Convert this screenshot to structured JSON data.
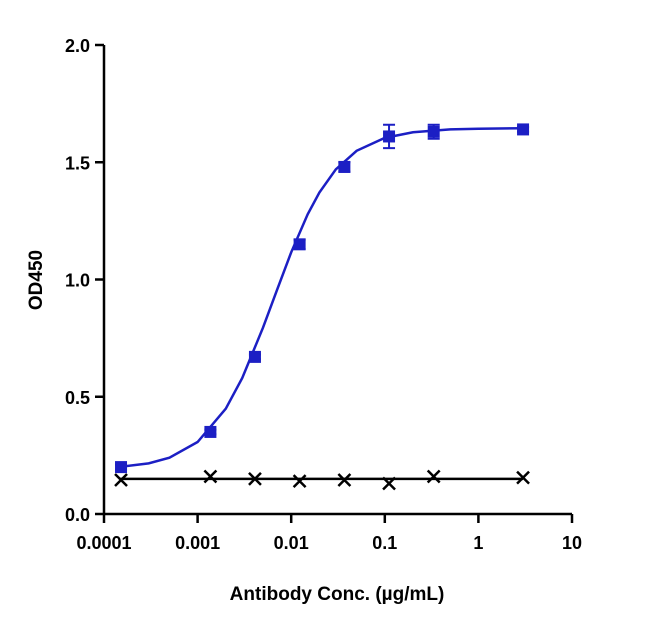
{
  "chart_data": {
    "type": "scatter",
    "x_label": "Antibody Conc. (µg/mL)",
    "y_label": "OD450",
    "xscale": "log",
    "xlim": [
      0.0001,
      10
    ],
    "xticks": [
      0.0001,
      0.001,
      0.01,
      0.1,
      1,
      10
    ],
    "ylim": [
      0,
      2
    ],
    "yticks": [
      {
        "value": 0,
        "label": "0.0"
      },
      0.5,
      {
        "value": 1,
        "label": "1.0"
      },
      1.5,
      {
        "value": 2,
        "label": "2.0"
      }
    ],
    "series": [
      {
        "color": "#1c1fc4",
        "marker": "square",
        "x": [
          0.000152,
          0.00137,
          0.0041,
          0.0123,
          0.037,
          0.111,
          0.333,
          3
        ],
        "values": [
          0.2,
          0.35,
          0.67,
          1.15,
          1.48,
          1.61,
          1.63,
          1.64
        ],
        "errors": [
          0.01,
          0.01,
          0.01,
          0.02,
          0.02,
          0.05,
          0.03,
          0.01
        ]
      },
      {
        "color": "#000000",
        "marker": "x",
        "x": [
          0.000152,
          0.00137,
          0.0041,
          0.0123,
          0.037,
          0.111,
          0.333,
          3
        ],
        "values": [
          0.145,
          0.16,
          0.15,
          0.14,
          0.145,
          0.13,
          0.16,
          0.155
        ]
      }
    ],
    "lines": [
      {
        "color": "#1c1fc4",
        "x": [
          0.00015,
          0.0003,
          0.0005,
          0.001,
          0.002,
          0.003,
          0.005,
          0.007,
          0.01,
          0.015,
          0.02,
          0.03,
          0.05,
          0.1,
          0.2,
          0.5,
          1,
          3
        ],
        "values": [
          0.201,
          0.216,
          0.24,
          0.307,
          0.449,
          0.58,
          0.795,
          0.952,
          1.116,
          1.278,
          1.371,
          1.47,
          1.549,
          1.604,
          1.628,
          1.64,
          1.643,
          1.645
        ]
      },
      {
        "color": "#000000",
        "x": [
          0.00015,
          3
        ],
        "values": [
          0.15,
          0.15
        ]
      }
    ]
  }
}
